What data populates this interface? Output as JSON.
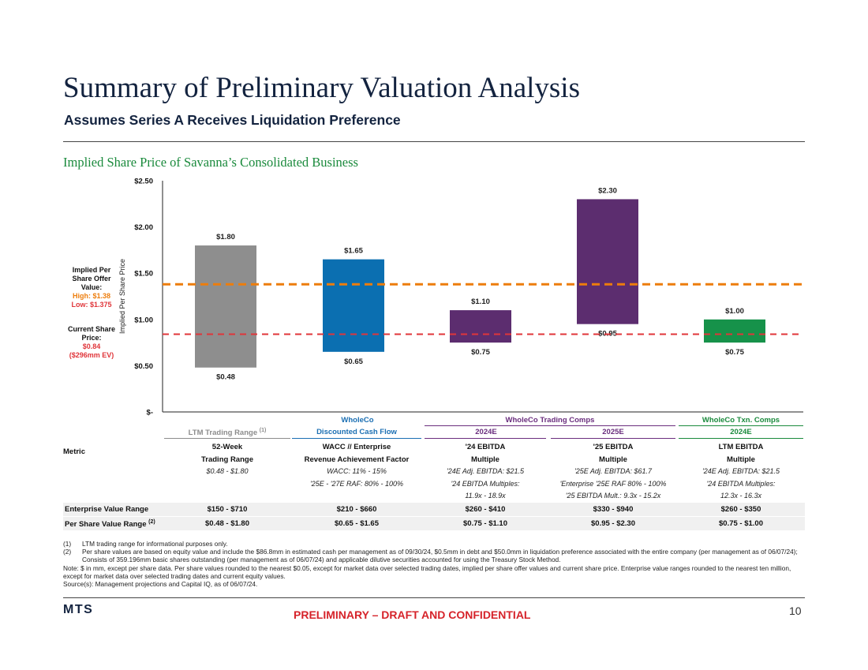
{
  "header": {
    "title": "Summary of Preliminary Valuation Analysis",
    "subtitle": "Assumes Series A Receives Liquidation Preference",
    "section_title": "Implied Share Price of Savanna’s Consolidated Business"
  },
  "offer_label": {
    "line1": "Implied Per",
    "line2": "Share Offer",
    "line3": "Value:",
    "high": "High: $1.38",
    "low": "Low: $1.375"
  },
  "current_label": {
    "line1": "Current Share",
    "line2": "Price:",
    "price": "$0.84",
    "ev": "($296mm EV)"
  },
  "chart_data": {
    "type": "bar",
    "subtype": "floating-range",
    "ylabel": "Implied Per Share Price",
    "ylim": [
      0,
      2.5
    ],
    "yticks": [
      0,
      0.5,
      1.0,
      1.5,
      2.0,
      2.5
    ],
    "ytick_labels": [
      "$-",
      "$0.50",
      "$1.00",
      "$1.50",
      "$2.00",
      "$2.50"
    ],
    "categories": [
      "LTM Trading Range",
      "Discounted Cash Flow",
      "2024E Trading Comps",
      "2025E Trading Comps",
      "2024E Txn. Comps"
    ],
    "series": [
      {
        "low": [
          0.48,
          0.65,
          0.75,
          0.95,
          0.75
        ],
        "high": [
          1.8,
          1.65,
          1.1,
          2.3,
          1.0
        ],
        "low_labels": [
          "$0.48",
          "$0.65",
          "$0.75",
          "$0.95",
          "$0.75"
        ],
        "high_labels": [
          "$1.80",
          "$1.65",
          "$1.10",
          "$2.30",
          "$1.00"
        ],
        "colors": [
          "#8e8e8e",
          "#0b6fb1",
          "#5c2d6f",
          "#5c2d6f",
          "#16924a"
        ]
      }
    ],
    "reference_lines": [
      {
        "value": 1.38,
        "color": "#ed7d0c",
        "style": "dashed"
      },
      {
        "value": 0.84,
        "color": "#e0353a",
        "style": "dashed"
      }
    ],
    "grid": false
  },
  "colors": {
    "title": "#13233f",
    "green": "#1a8a3c",
    "blue": "#1b6fb3",
    "purple": "#6a2e7e",
    "orange": "#ed7d0c",
    "red": "#d6232a",
    "gray": "#8c8c8c"
  },
  "table": {
    "group_headers": {
      "g1": "WholeCo",
      "g2": "WholeCo Trading Comps",
      "g3": "WholeCo Txn. Comps"
    },
    "column_headers": {
      "c1": "LTM Trading Range",
      "c1_sup": "(1)",
      "c2": "Discounted Cash Flow",
      "c3": "2024E",
      "c4": "2025E",
      "c5": "2024E"
    },
    "metric_label": "Metric",
    "metric": {
      "c1": {
        "l1": "52-Week",
        "l2": "Trading Range",
        "l3": "$0.48 - $1.80"
      },
      "c2": {
        "l1": "WACC // Enterprise",
        "l2": "Revenue Achievement Factor",
        "l3": "WACC: 11% - 15%",
        "l4": "'25E - '27E RAF: 80% - 100%"
      },
      "c3": {
        "l1": "'24 EBITDA",
        "l2": "Multiple",
        "l3": "'24E Adj. EBITDA: $21.5",
        "l4": "'24 EBITDA Multiples:",
        "l5": "11.9x - 18.9x"
      },
      "c4": {
        "l1": "'25 EBITDA",
        "l2": "Multiple",
        "l3": "'25E Adj. EBITDA: $61.7",
        "l4": "'Enterprise '25E RAF 80% - 100%",
        "l5": "'25 EBITDA Mult.: 9.3x - 15.2x"
      },
      "c5": {
        "l1": "LTM EBITDA",
        "l2": "Multiple",
        "l3": "'24E Adj. EBITDA: $21.5",
        "l4": "'24 EBITDA Multiples:",
        "l5": "12.3x - 16.3x"
      }
    },
    "ev_row": {
      "label": "Enterprise Value Range",
      "values": [
        "$150 - $710",
        "$210 - $660",
        "$260 - $410",
        "$330 - $940",
        "$260 - $350"
      ]
    },
    "ps_row": {
      "label": "Per Share Value Range",
      "sup": "(2)",
      "values": [
        "$0.48 - $1.80",
        "$0.65 - $1.65",
        "$0.75 - $1.10",
        "$0.95 - $2.30",
        "$0.75 - $1.00"
      ]
    }
  },
  "notes": {
    "n1_num": "(1)",
    "n1": "LTM trading range for informational purposes only.",
    "n2_num": "(2)",
    "n2": "Per share values are based on equity value and include the $86.8mm in estimated cash per management as of 09/30/24, $0.5mm in debt and $50.0mm in liquidation preference associated with the entire company (per management as of 06/07/24); Consists of 359.196mm basic shares outstanding (per management as of 06/07/24) and applicable dilutive securities accounted for using the Treasury Stock Method.",
    "note": "Note: $ in mm, except per share data. Per share values rounded to the nearest $0.05, except for market data over selected trading dates, implied per share offer values and current share price. Enterprise value ranges rounded to the nearest ten million, except for market data over selected trading dates and current equity values.",
    "source": "Source(s): Management projections and Capital IQ, as of 06/07/24."
  },
  "footer": {
    "logo": "MTS",
    "confidential": "PRELIMINARY – DRAFT AND CONFIDENTIAL",
    "page": "10"
  }
}
